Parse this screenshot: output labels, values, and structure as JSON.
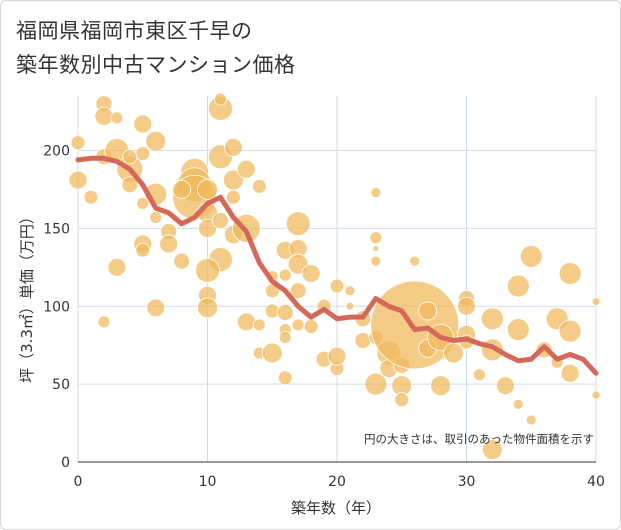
{
  "title_line1": "福岡県福岡市東区千早の",
  "title_line2": "築年数別中古マンション価格",
  "chart_data": {
    "type": "scatter",
    "xlabel": "築年数（年）",
    "ylabel": "坪（3.3㎡）単価（万円）",
    "xlim": [
      0,
      40
    ],
    "ylim": [
      0,
      235
    ],
    "xticks": [
      "0",
      "10",
      "20",
      "30",
      "40"
    ],
    "yticks": [
      "0",
      "50",
      "100",
      "150",
      "200"
    ],
    "grid": true,
    "note": "円の大きさは、取引のあった物件面積を示す",
    "colors": {
      "bubble": "#f0b85a",
      "line": "#d4695a",
      "grid": "#cfdcea"
    },
    "trend_line": {
      "x": [
        0,
        1,
        2,
        3,
        4,
        5,
        6,
        7,
        8,
        9,
        10,
        11,
        12,
        13,
        14,
        15,
        16,
        17,
        18,
        19,
        20,
        21,
        22,
        23,
        24,
        25,
        26,
        27,
        28,
        29,
        30,
        31,
        32,
        33,
        34,
        35,
        36,
        37,
        38,
        39,
        40
      ],
      "y": [
        194,
        195,
        195,
        193,
        188,
        178,
        163,
        160,
        153,
        157,
        166,
        170,
        157,
        148,
        128,
        116,
        110,
        100,
        93,
        98,
        92,
        93,
        93,
        105,
        100,
        97,
        85,
        86,
        80,
        78,
        79,
        76,
        74,
        69,
        65,
        66,
        74,
        66,
        69,
        66,
        57
      ]
    },
    "points": [
      {
        "x": 0,
        "y": 205,
        "s": 7
      },
      {
        "x": 0,
        "y": 181,
        "s": 9
      },
      {
        "x": 2,
        "y": 230,
        "s": 8
      },
      {
        "x": 2,
        "y": 222,
        "s": 9
      },
      {
        "x": 3,
        "y": 221,
        "s": 6
      },
      {
        "x": 2,
        "y": 196,
        "s": 8
      },
      {
        "x": 3,
        "y": 200,
        "s": 12
      },
      {
        "x": 4,
        "y": 188,
        "s": 13
      },
      {
        "x": 4,
        "y": 178,
        "s": 8
      },
      {
        "x": 5,
        "y": 217,
        "s": 9
      },
      {
        "x": 6,
        "y": 206,
        "s": 10
      },
      {
        "x": 5,
        "y": 198,
        "s": 7
      },
      {
        "x": 6,
        "y": 172,
        "s": 11
      },
      {
        "x": 5,
        "y": 166,
        "s": 6
      },
      {
        "x": 4,
        "y": 196,
        "s": 7
      },
      {
        "x": 1,
        "y": 170,
        "s": 7
      },
      {
        "x": 3,
        "y": 125,
        "s": 9
      },
      {
        "x": 2,
        "y": 90,
        "s": 6
      },
      {
        "x": 6,
        "y": 99,
        "s": 9
      },
      {
        "x": 5,
        "y": 140,
        "s": 9
      },
      {
        "x": 5,
        "y": 136,
        "s": 7
      },
      {
        "x": 7,
        "y": 148,
        "s": 8
      },
      {
        "x": 7,
        "y": 140,
        "s": 9
      },
      {
        "x": 8,
        "y": 129,
        "s": 8
      },
      {
        "x": 9,
        "y": 186,
        "s": 14
      },
      {
        "x": 9,
        "y": 178,
        "s": 17
      },
      {
        "x": 9,
        "y": 170,
        "s": 22
      },
      {
        "x": 10,
        "y": 175,
        "s": 10
      },
      {
        "x": 10,
        "y": 160,
        "s": 10
      },
      {
        "x": 10,
        "y": 150,
        "s": 9
      },
      {
        "x": 11,
        "y": 227,
        "s": 12
      },
      {
        "x": 11,
        "y": 196,
        "s": 12
      },
      {
        "x": 12,
        "y": 202,
        "s": 9
      },
      {
        "x": 12,
        "y": 181,
        "s": 10
      },
      {
        "x": 12,
        "y": 170,
        "s": 7
      },
      {
        "x": 11,
        "y": 155,
        "s": 8
      },
      {
        "x": 12,
        "y": 146,
        "s": 9
      },
      {
        "x": 13,
        "y": 150,
        "s": 14
      },
      {
        "x": 11,
        "y": 130,
        "s": 12
      },
      {
        "x": 10,
        "y": 123,
        "s": 12
      },
      {
        "x": 10,
        "y": 107,
        "s": 9
      },
      {
        "x": 10,
        "y": 99,
        "s": 10
      },
      {
        "x": 11,
        "y": 233,
        "s": 6
      },
      {
        "x": 13,
        "y": 188,
        "s": 9
      },
      {
        "x": 14,
        "y": 177,
        "s": 7
      },
      {
        "x": 13,
        "y": 90,
        "s": 9
      },
      {
        "x": 14,
        "y": 88,
        "s": 6
      },
      {
        "x": 14,
        "y": 70,
        "s": 6
      },
      {
        "x": 15,
        "y": 119,
        "s": 6
      },
      {
        "x": 15,
        "y": 110,
        "s": 7
      },
      {
        "x": 15,
        "y": 97,
        "s": 7
      },
      {
        "x": 15,
        "y": 70,
        "s": 10
      },
      {
        "x": 16,
        "y": 136,
        "s": 9
      },
      {
        "x": 16,
        "y": 120,
        "s": 6
      },
      {
        "x": 16,
        "y": 96,
        "s": 8
      },
      {
        "x": 16,
        "y": 85,
        "s": 6
      },
      {
        "x": 16,
        "y": 80,
        "s": 6
      },
      {
        "x": 16,
        "y": 54,
        "s": 7
      },
      {
        "x": 17,
        "y": 153,
        "s": 12
      },
      {
        "x": 17,
        "y": 137,
        "s": 9
      },
      {
        "x": 17,
        "y": 127,
        "s": 10
      },
      {
        "x": 17,
        "y": 110,
        "s": 8
      },
      {
        "x": 17,
        "y": 88,
        "s": 6
      },
      {
        "x": 18,
        "y": 121,
        "s": 9
      },
      {
        "x": 18,
        "y": 87,
        "s": 7
      },
      {
        "x": 19,
        "y": 100,
        "s": 7
      },
      {
        "x": 19,
        "y": 66,
        "s": 8
      },
      {
        "x": 20,
        "y": 113,
        "s": 7
      },
      {
        "x": 20,
        "y": 60,
        "s": 7
      },
      {
        "x": 20,
        "y": 68,
        "s": 9
      },
      {
        "x": 21,
        "y": 110,
        "s": 5
      },
      {
        "x": 23,
        "y": 173,
        "s": 5
      },
      {
        "x": 23,
        "y": 144,
        "s": 6
      },
      {
        "x": 23,
        "y": 129,
        "s": 5
      },
      {
        "x": 23,
        "y": 137,
        "s": 3
      },
      {
        "x": 22,
        "y": 92,
        "s": 8
      },
      {
        "x": 22,
        "y": 78,
        "s": 8
      },
      {
        "x": 23,
        "y": 80,
        "s": 7
      },
      {
        "x": 23,
        "y": 50,
        "s": 11
      },
      {
        "x": 24,
        "y": 70,
        "s": 12
      },
      {
        "x": 24,
        "y": 60,
        "s": 9
      },
      {
        "x": 25,
        "y": 62,
        "s": 8
      },
      {
        "x": 25,
        "y": 49,
        "s": 10
      },
      {
        "x": 25,
        "y": 40,
        "s": 7
      },
      {
        "x": 26,
        "y": 88,
        "s": 44
      },
      {
        "x": 27,
        "y": 97,
        "s": 9
      },
      {
        "x": 27,
        "y": 73,
        "s": 9
      },
      {
        "x": 28,
        "y": 80,
        "s": 13
      },
      {
        "x": 28,
        "y": 49,
        "s": 10
      },
      {
        "x": 29,
        "y": 70,
        "s": 10
      },
      {
        "x": 30,
        "y": 105,
        "s": 8
      },
      {
        "x": 30,
        "y": 100,
        "s": 9
      },
      {
        "x": 30,
        "y": 82,
        "s": 9
      },
      {
        "x": 30,
        "y": 77,
        "s": 7
      },
      {
        "x": 31,
        "y": 56,
        "s": 6
      },
      {
        "x": 32,
        "y": 92,
        "s": 11
      },
      {
        "x": 32,
        "y": 72,
        "s": 11
      },
      {
        "x": 32,
        "y": 8,
        "s": 10
      },
      {
        "x": 33,
        "y": 49,
        "s": 9
      },
      {
        "x": 34,
        "y": 113,
        "s": 11
      },
      {
        "x": 34,
        "y": 85,
        "s": 11
      },
      {
        "x": 34,
        "y": 37,
        "s": 5
      },
      {
        "x": 35,
        "y": 132,
        "s": 11
      },
      {
        "x": 35,
        "y": 27,
        "s": 5
      },
      {
        "x": 36,
        "y": 72,
        "s": 8
      },
      {
        "x": 37,
        "y": 92,
        "s": 11
      },
      {
        "x": 37,
        "y": 64,
        "s": 6
      },
      {
        "x": 38,
        "y": 121,
        "s": 11
      },
      {
        "x": 38,
        "y": 84,
        "s": 11
      },
      {
        "x": 38,
        "y": 57,
        "s": 9
      },
      {
        "x": 40,
        "y": 103,
        "s": 4
      },
      {
        "x": 40,
        "y": 43,
        "s": 4
      },
      {
        "x": 26,
        "y": 129,
        "s": 5
      },
      {
        "x": 21,
        "y": 100,
        "s": 4
      },
      {
        "x": 8,
        "y": 175,
        "s": 9
      },
      {
        "x": 6,
        "y": 157,
        "s": 6
      }
    ]
  }
}
